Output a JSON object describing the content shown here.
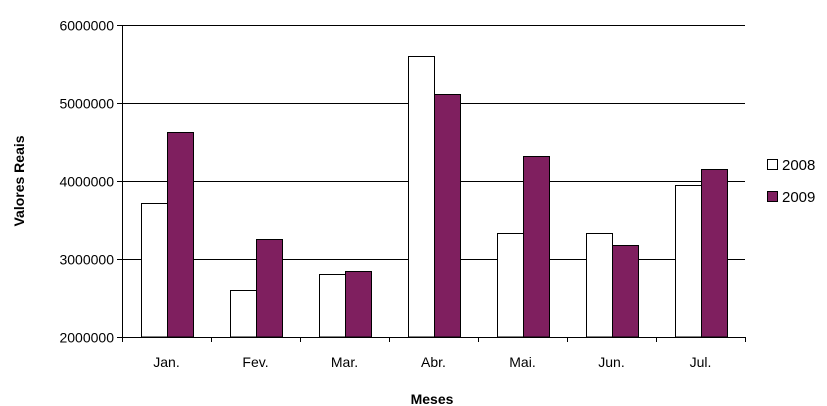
{
  "chart_data": {
    "type": "bar",
    "title": "",
    "xlabel": "Meses",
    "ylabel": "Valores Reais",
    "categories": [
      "Jan.",
      "Fev.",
      "Mar.",
      "Abr.",
      "Mai.",
      "Jun.",
      "Jul."
    ],
    "series": [
      {
        "name": "2008",
        "color": "#ffffff",
        "values": [
          3720000,
          2600000,
          2810000,
          5600000,
          3330000,
          3330000,
          3950000
        ]
      },
      {
        "name": "2009",
        "color": "#7f1f5f",
        "values": [
          4630000,
          3260000,
          2850000,
          5120000,
          4320000,
          3180000,
          4160000
        ]
      }
    ],
    "ylim": [
      2000000,
      6000000
    ],
    "yticks": [
      2000000,
      3000000,
      4000000,
      5000000,
      6000000
    ],
    "ytick_labels": [
      "2000000",
      "3000000",
      "4000000",
      "5000000",
      "6000000"
    ],
    "grid": true,
    "legend_position": "right"
  }
}
